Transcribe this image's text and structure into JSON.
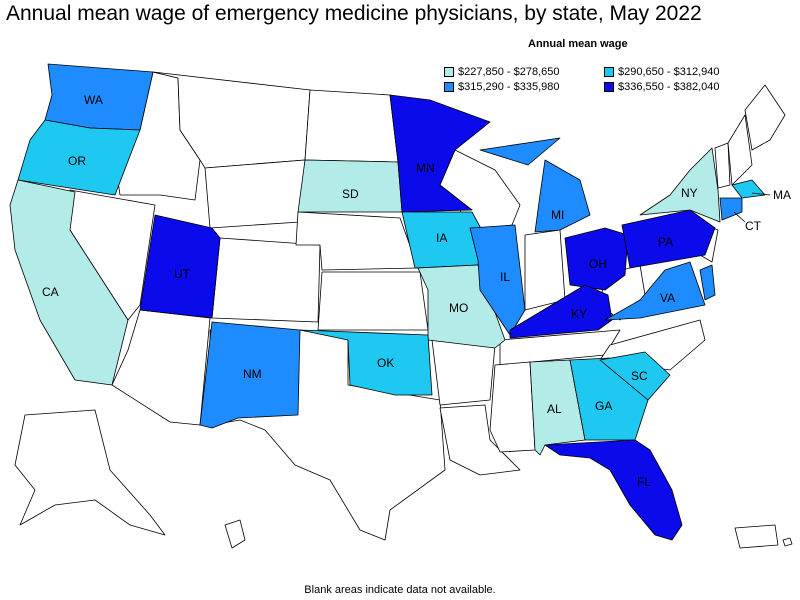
{
  "title": "Annual mean wage of emergency medicine physicians, by state, May 2022",
  "legend": {
    "title": "Annual mean wage",
    "items": [
      {
        "range": "$227,850 - $278,650",
        "color": "#b2ebe8"
      },
      {
        "range": "$290,650 - $312,940",
        "color": "#1ec8f0"
      },
      {
        "range": "$315,290 - $335,980",
        "color": "#1e8cff"
      },
      {
        "range": "$336,550 - $382,040",
        "color": "#0a0aea"
      }
    ]
  },
  "footnote": "Blank areas indicate data not available.",
  "states": {
    "WA": {
      "label": "WA",
      "color": "#1e8cff"
    },
    "OR": {
      "label": "OR",
      "color": "#1ec8f0"
    },
    "CA": {
      "label": "CA",
      "color": "#b2ebe8"
    },
    "UT": {
      "label": "UT",
      "color": "#0a0aea"
    },
    "NM": {
      "label": "NM",
      "color": "#1e8cff"
    },
    "SD": {
      "label": "SD",
      "color": "#b2ebe8"
    },
    "MN": {
      "label": "MN",
      "color": "#0a0aea"
    },
    "IA": {
      "label": "IA",
      "color": "#1ec8f0"
    },
    "MO": {
      "label": "MO",
      "color": "#b2ebe8"
    },
    "OK": {
      "label": "OK",
      "color": "#1ec8f0"
    },
    "IL": {
      "label": "IL",
      "color": "#1e8cff"
    },
    "MI": {
      "label": "MI",
      "color": "#1e8cff"
    },
    "OH": {
      "label": "OH",
      "color": "#0a0aea"
    },
    "KY": {
      "label": "KY",
      "color": "#0a0aea"
    },
    "PA": {
      "label": "PA",
      "color": "#0a0aea"
    },
    "NY": {
      "label": "NY",
      "color": "#b2ebe8"
    },
    "VA": {
      "label": "VA",
      "color": "#1e8cff"
    },
    "AL": {
      "label": "AL",
      "color": "#b2ebe8"
    },
    "GA": {
      "label": "GA",
      "color": "#1ec8f0"
    },
    "SC": {
      "label": "SC",
      "color": "#1ec8f0"
    },
    "FL": {
      "label": "FL",
      "color": "#0a0aea"
    },
    "MA": {
      "label": "MA",
      "color": "#1ec8f0"
    },
    "CT": {
      "label": "CT",
      "color": "#1e8cff"
    },
    "MD": {
      "color": "#1e8cff"
    }
  }
}
